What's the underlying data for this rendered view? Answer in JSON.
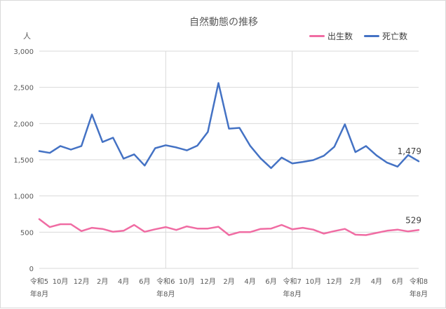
{
  "chart_data": {
    "type": "line",
    "title": "自然動態の推移",
    "ylabel": "人",
    "ylim": [
      0,
      3000
    ],
    "yticks": [
      0,
      500,
      1000,
      1500,
      2000,
      2500,
      3000
    ],
    "ytick_labels": [
      "0",
      "500",
      "1,000",
      "1,500",
      "2,000",
      "2,500",
      "3,000"
    ],
    "x_labels": [
      {
        "index": 0,
        "line1": "令和5",
        "line2": "年8月"
      },
      {
        "index": 2,
        "line1": "10月",
        "line2": ""
      },
      {
        "index": 4,
        "line1": "12月",
        "line2": ""
      },
      {
        "index": 6,
        "line1": "2月",
        "line2": ""
      },
      {
        "index": 8,
        "line1": "4月",
        "line2": ""
      },
      {
        "index": 10,
        "line1": "6月",
        "line2": ""
      },
      {
        "index": 12,
        "line1": "令和6",
        "line2": "年8月"
      },
      {
        "index": 14,
        "line1": "10月",
        "line2": ""
      },
      {
        "index": 16,
        "line1": "12月",
        "line2": ""
      },
      {
        "index": 18,
        "line1": "2月",
        "line2": ""
      },
      {
        "index": 20,
        "line1": "4月",
        "line2": ""
      },
      {
        "index": 22,
        "line1": "6月",
        "line2": ""
      },
      {
        "index": 24,
        "line1": "令和7",
        "line2": "年8月"
      },
      {
        "index": 26,
        "line1": "10月",
        "line2": ""
      },
      {
        "index": 28,
        "line1": "12月",
        "line2": ""
      },
      {
        "index": 30,
        "line1": "2月",
        "line2": ""
      },
      {
        "index": 32,
        "line1": "4月",
        "line2": ""
      },
      {
        "index": 34,
        "line1": "6月",
        "line2": ""
      },
      {
        "index": 36,
        "line1": "令和8",
        "line2": "年8月"
      }
    ],
    "vertical_gridline_indices": [
      12,
      24
    ],
    "grid": true,
    "legend_position": "top-right",
    "series": [
      {
        "name": "出生数",
        "color": "#f06ca3",
        "values": [
          680,
          570,
          610,
          610,
          515,
          560,
          545,
          505,
          520,
          600,
          505,
          540,
          570,
          530,
          580,
          550,
          550,
          575,
          460,
          500,
          500,
          545,
          550,
          600,
          540,
          560,
          535,
          480,
          515,
          545,
          465,
          460,
          490,
          520,
          535,
          510,
          529
        ],
        "end_label": "529"
      },
      {
        "name": "死亡数",
        "color": "#4472c4",
        "values": [
          1620,
          1595,
          1690,
          1640,
          1690,
          2125,
          1745,
          1805,
          1515,
          1575,
          1420,
          1660,
          1700,
          1670,
          1630,
          1695,
          1885,
          2560,
          1930,
          1940,
          1695,
          1520,
          1385,
          1530,
          1450,
          1470,
          1495,
          1555,
          1680,
          1990,
          1605,
          1690,
          1560,
          1460,
          1405,
          1565,
          1479
        ],
        "end_label": "1,479"
      }
    ]
  }
}
